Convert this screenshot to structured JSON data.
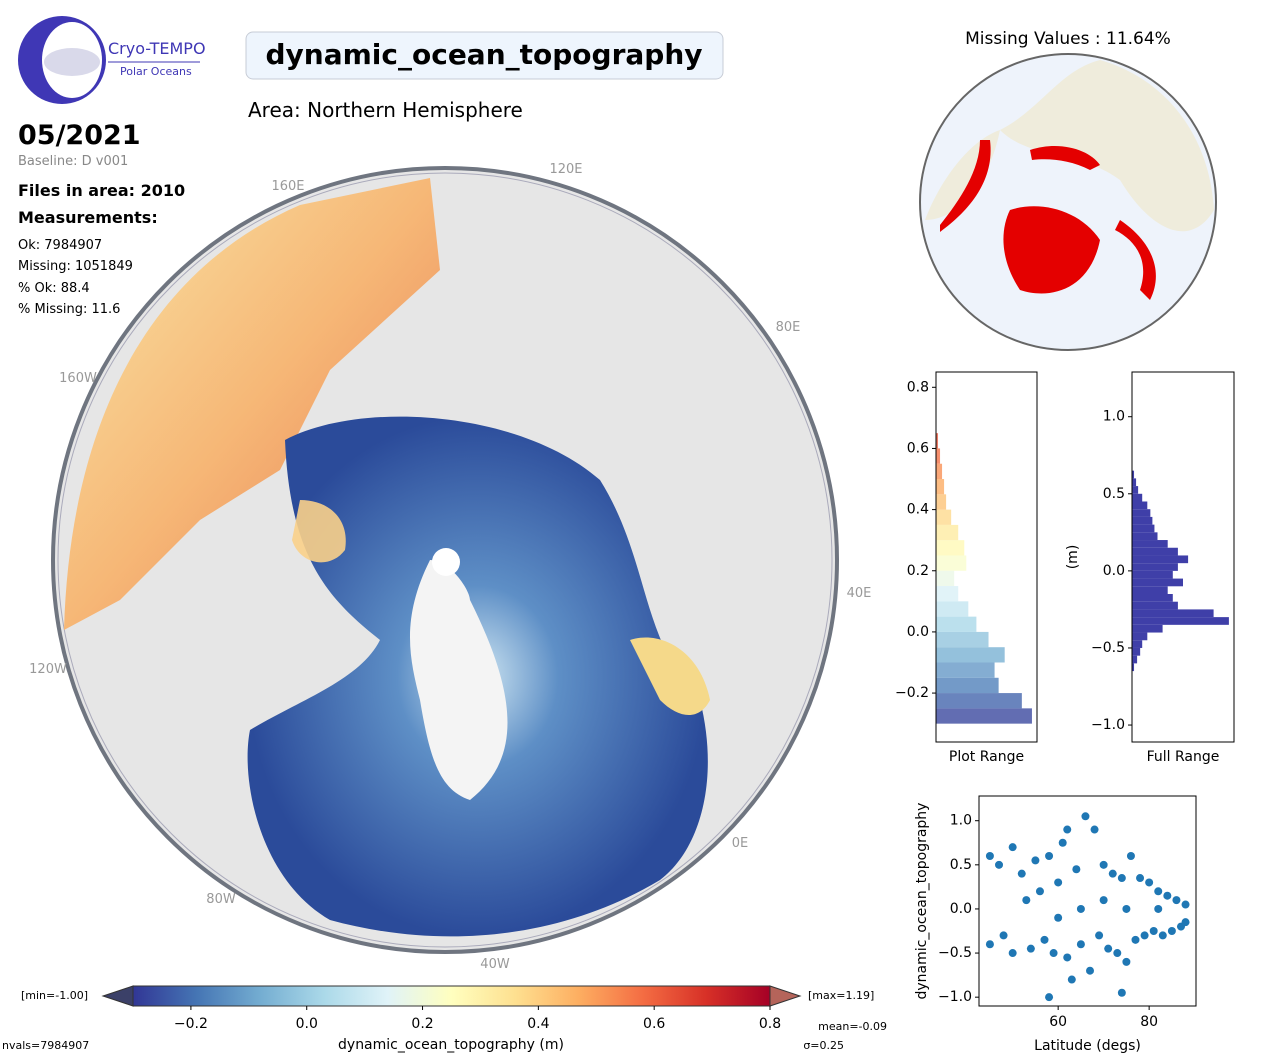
{
  "header": {
    "logo_title": "Cryo-TEMPO",
    "logo_subtitle": "Polar Oceans",
    "title": "dynamic_ocean_topography",
    "area": "Area: Northern Hemisphere",
    "date": "05/2021",
    "baseline": "Baseline: D v001",
    "files": "Files in area: 2010",
    "measurements_title": "Measurements:",
    "stats": [
      "Ok: 7984907",
      "Missing: 1051849",
      "% Ok: 88.4",
      "% Missing: 11.6"
    ]
  },
  "map": {
    "lon_labels": [
      "120E",
      "160E",
      "80E",
      "160W",
      "40E",
      "120W",
      "0E",
      "80W",
      "40W"
    ]
  },
  "missing_map": {
    "title": "Missing Values : 11.64%"
  },
  "colorbar": {
    "min_label": "[min=-1.00]",
    "max_label": "[max=1.19]",
    "label": "dynamic_ocean_topography (m)",
    "lim": [
      -0.3,
      0.8
    ],
    "ticks": [
      {
        "value": -0.2,
        "label": "−0.2"
      },
      {
        "value": 0,
        "label": "0.0"
      },
      0.2,
      0.4,
      0.6,
      0.8
    ],
    "colormap": [
      "#313695",
      "#4575b4",
      "#74add1",
      "#abd9e9",
      "#e0f3f8",
      "#ffffbf",
      "#fee090",
      "#fdae61",
      "#f46d43",
      "#d73027",
      "#a50026"
    ],
    "under_color": "#3b4068",
    "over_color": "#b5645a"
  },
  "footer": {
    "nvals": "nvals=7984907",
    "mean": "mean=-0.09",
    "sigma": "σ=0.25"
  },
  "chart_data": [
    {
      "type": "histogram",
      "xlabel": "Plot Range",
      "colored_by": "colorbar",
      "bins": [
        -0.3,
        -0.25,
        -0.2,
        -0.15,
        -0.1,
        -0.05,
        0,
        0.05,
        0.1,
        0.15,
        0.2,
        0.25,
        0.3,
        0.35,
        0.4,
        0.45,
        0.5,
        0.55,
        0.6,
        0.65
      ],
      "values": [
        95,
        85,
        62,
        58,
        68,
        52,
        40,
        32,
        22,
        18,
        30,
        28,
        22,
        15,
        10,
        8,
        6,
        4,
        2
      ],
      "xlim": [
        0,
        100
      ],
      "ylim": [
        -0.36,
        0.85
      ],
      "yticks": [
        {
          "value": -0.2,
          "label": "−0.2"
        },
        {
          "value": 0,
          "label": "0.0"
        },
        0.2,
        0.4,
        0.6,
        0.8
      ]
    },
    {
      "type": "histogram",
      "xlabel": "Full Range",
      "ylabel": "(m)",
      "color": "#3f3fa8",
      "bins": [
        -0.65,
        -0.6,
        -0.55,
        -0.5,
        -0.45,
        -0.4,
        -0.35,
        -0.3,
        -0.25,
        -0.2,
        -0.15,
        -0.1,
        -0.05,
        0,
        0.05,
        0.1,
        0.15,
        0.2,
        0.25,
        0.3,
        0.35,
        0.4,
        0.45,
        0.5,
        0.55,
        0.6,
        0.65
      ],
      "values": [
        2,
        5,
        8,
        10,
        15,
        30,
        95,
        80,
        45,
        40,
        35,
        50,
        40,
        45,
        55,
        45,
        35,
        25,
        22,
        20,
        18,
        15,
        10,
        6,
        4,
        2
      ],
      "xlim": [
        0,
        100
      ],
      "ylim": [
        -1.11,
        1.29
      ],
      "yticks": [
        {
          "value": -1,
          "label": "−1.0"
        },
        {
          "value": -0.5,
          "label": "−0.5"
        },
        {
          "value": 0,
          "label": "0.0"
        },
        0.5,
        {
          "value": 1,
          "label": "1.0"
        }
      ]
    },
    {
      "type": "scatter",
      "xlabel": "Latitude (degs)",
      "ylabel": "dynamic_ocean_topography",
      "color": "#1f77b4",
      "x": [
        45,
        45,
        47,
        48,
        50,
        50,
        52,
        54,
        55,
        56,
        57,
        58,
        59,
        60,
        61,
        62,
        62,
        63,
        64,
        65,
        66,
        67,
        68,
        69,
        70,
        71,
        72,
        73,
        74,
        75,
        76,
        77,
        78,
        79,
        80,
        81,
        82,
        83,
        84,
        85,
        86,
        87,
        88,
        88,
        53,
        65,
        75,
        82,
        60,
        70,
        58,
        74
      ],
      "y": [
        0.6,
        -0.4,
        0.5,
        -0.3,
        0.7,
        -0.5,
        0.4,
        -0.45,
        0.55,
        0.2,
        -0.35,
        0.6,
        -0.5,
        0.3,
        0.75,
        -0.55,
        0.9,
        -0.8,
        0.45,
        -0.4,
        1.05,
        -0.7,
        0.9,
        -0.3,
        0.5,
        -0.45,
        0.4,
        -0.5,
        0.35,
        -0.6,
        0.6,
        -0.35,
        0.35,
        -0.3,
        0.3,
        -0.25,
        0.2,
        -0.3,
        0.15,
        -0.25,
        0.1,
        -0.2,
        0.05,
        -0.15,
        0.1,
        0,
        0,
        0,
        -0.1,
        0.1,
        -1,
        -0.95
      ],
      "xlim": [
        42.6,
        90.3
      ],
      "ylim": [
        -1.1,
        1.28
      ],
      "xticks": [
        60,
        80
      ],
      "yticks": [
        {
          "value": -1,
          "label": "−1.0"
        },
        {
          "value": -0.5,
          "label": "−0.5"
        },
        {
          "value": 0,
          "label": "0.0"
        },
        0.5,
        {
          "value": 1,
          "label": "1.0"
        }
      ]
    }
  ]
}
